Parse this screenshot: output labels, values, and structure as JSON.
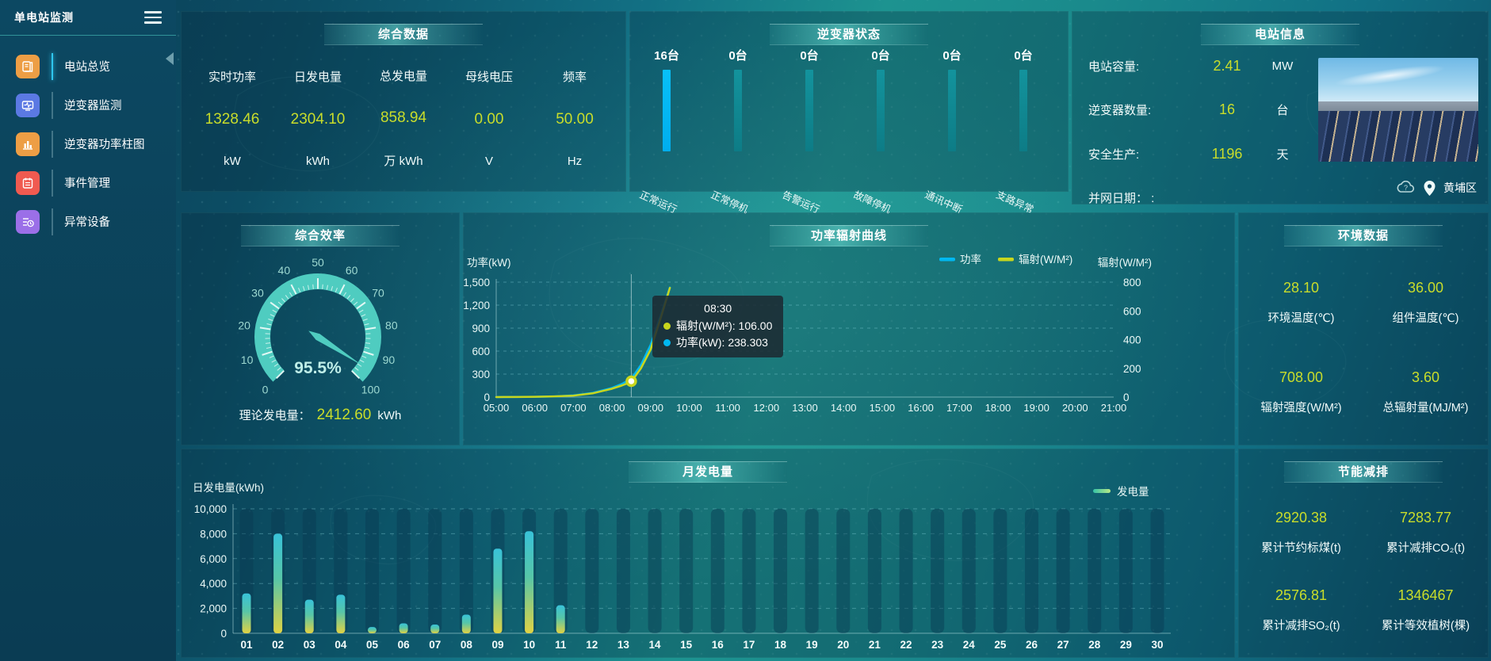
{
  "app": {
    "title": "单电站监测"
  },
  "sidebar": {
    "items": [
      {
        "label": "电站总览",
        "icon": "station-overview-icon",
        "color": "#ED9E45",
        "active": true
      },
      {
        "label": "逆变器监测",
        "icon": "inverter-monitor-icon",
        "color": "#5B79E3",
        "active": false
      },
      {
        "label": "逆变器功率柱图",
        "icon": "inverter-power-bars-icon",
        "color": "#ED9E45",
        "active": false
      },
      {
        "label": "事件管理",
        "icon": "event-management-icon",
        "color": "#F05A50",
        "active": false
      },
      {
        "label": "异常设备",
        "icon": "abnormal-device-icon",
        "color": "#9B6FE8",
        "active": false
      }
    ]
  },
  "panels": {
    "summary": {
      "title": "综合数据",
      "metrics": [
        {
          "label": "实时功率",
          "value": "1328.46",
          "unit": "kW"
        },
        {
          "label": "日发电量",
          "value": "2304.10",
          "unit": "kWh"
        },
        {
          "label": "总发电量",
          "value": "858.94",
          "unit": "万 kWh"
        },
        {
          "label": "母线电压",
          "value": "0.00",
          "unit": "V"
        },
        {
          "label": "频率",
          "value": "50.00",
          "unit": "Hz"
        }
      ]
    },
    "inverter_status": {
      "title": "逆变器状态",
      "bars": [
        {
          "count": "16台",
          "label": "正常运行",
          "highlight": true
        },
        {
          "count": "0台",
          "label": "正常停机",
          "highlight": false
        },
        {
          "count": "0台",
          "label": "告警运行",
          "highlight": false
        },
        {
          "count": "0台",
          "label": "故障停机",
          "highlight": false
        },
        {
          "count": "0台",
          "label": "通讯中断",
          "highlight": false
        },
        {
          "count": "0台",
          "label": "支路异常",
          "highlight": false
        }
      ]
    },
    "station_info": {
      "title": "电站信息",
      "rows": [
        {
          "label": "电站容量:",
          "value": "2.41",
          "unit": "MW"
        },
        {
          "label": "逆变器数量:",
          "value": "16",
          "unit": "台"
        },
        {
          "label": "安全生产:",
          "value": "1196",
          "unit": "天"
        },
        {
          "label": "并网日期： :",
          "value": "",
          "unit": ""
        }
      ],
      "location": "黄埔区"
    },
    "efficiency": {
      "title": "综合效率",
      "theory_label": "理论发电量：",
      "theory_value": "2412.60",
      "theory_unit": "kWh"
    },
    "power_curve": {
      "title": "功率辐射曲线"
    },
    "environment": {
      "title": "环境数据",
      "metrics": [
        {
          "value": "28.10",
          "label": "环境温度(℃)"
        },
        {
          "value": "36.00",
          "label": "组件温度(℃)"
        },
        {
          "value": "708.00",
          "label": "辐射强度(W/M²)"
        },
        {
          "value": "3.60",
          "label": "总辐射量(MJ/M²)"
        }
      ]
    },
    "monthly_energy": {
      "title": "月发电量"
    },
    "energy_saving": {
      "title": "节能减排",
      "metrics": [
        {
          "value": "2920.38",
          "label": "累计节约标煤(t)"
        },
        {
          "value": "7283.77",
          "label": "累计减排CO₂(t)"
        },
        {
          "value": "2576.81",
          "label": "累计减排SO₂(t)"
        },
        {
          "value": "1346467",
          "label": "累计等效植树(棵)"
        }
      ]
    }
  },
  "colors": {
    "accent_value": "#c9dd2a",
    "power_line": "#00b8f1",
    "radiation_line": "#c8d61d",
    "gauge": "#4fccc0",
    "bar_teal": "#12919b",
    "bar_highlight": "#00b6f5"
  },
  "chart_data": [
    {
      "id": "inverter_status",
      "type": "bar",
      "title": "逆变器状态",
      "categories": [
        "正常运行",
        "正常停机",
        "告警运行",
        "故障停机",
        "通讯中断",
        "支路异常"
      ],
      "values": [
        16,
        0,
        0,
        0,
        0,
        0
      ],
      "unit": "台",
      "note": "all bars drawn equal length; counts shown as labels"
    },
    {
      "id": "efficiency_gauge",
      "type": "gauge",
      "title": "综合效率",
      "value": 95.5,
      "display": "95.5%",
      "min": 0,
      "max": 100,
      "tick_labels": [
        "0",
        "10",
        "20",
        "30",
        "40",
        "50",
        "60",
        "70",
        "80",
        "90",
        "100"
      ]
    },
    {
      "id": "power_radiation",
      "type": "line",
      "title": "功率辐射曲线",
      "xlabel": "",
      "x_ticks": [
        "05:00",
        "06:00",
        "07:00",
        "08:00",
        "09:00",
        "10:00",
        "11:00",
        "12:00",
        "13:00",
        "14:00",
        "15:00",
        "16:00",
        "17:00",
        "18:00",
        "19:00",
        "20:00",
        "21:00"
      ],
      "x_range": [
        5,
        21
      ],
      "left_axis": {
        "label": "功率(kW)",
        "min": 0,
        "max": 1500,
        "ticks": [
          "0",
          "300",
          "600",
          "900",
          "1,200",
          "1,500"
        ]
      },
      "right_axis": {
        "label": "辐射(W/M²)",
        "min": 0,
        "max": 800,
        "ticks": [
          "0",
          "200",
          "400",
          "600",
          "800"
        ]
      },
      "legend": [
        {
          "name": "功率",
          "color": "#00b8f1"
        },
        {
          "name": "辐射(W/M²)",
          "color": "#c8d61d"
        }
      ],
      "series": [
        {
          "name": "功率",
          "axis": "left",
          "color": "#00b8f1",
          "points": [
            [
              5,
              0
            ],
            [
              5.5,
              1
            ],
            [
              6,
              3
            ],
            [
              6.5,
              8
            ],
            [
              7,
              22
            ],
            [
              7.5,
              55
            ],
            [
              8,
              120
            ],
            [
              8.25,
              170
            ],
            [
              8.5,
              238.3
            ],
            [
              8.75,
              420
            ],
            [
              9,
              680
            ],
            [
              9.25,
              1050
            ],
            [
              9.5,
              1430
            ]
          ]
        },
        {
          "name": "辐射(W/M²)",
          "axis": "right",
          "color": "#c8d61d",
          "points": [
            [
              5,
              0
            ],
            [
              5.5,
              1
            ],
            [
              6,
              2
            ],
            [
              6.5,
              5
            ],
            [
              7,
              10
            ],
            [
              7.5,
              26
            ],
            [
              8,
              58
            ],
            [
              8.25,
              80
            ],
            [
              8.5,
              106
            ],
            [
              8.75,
              200
            ],
            [
              9,
              330
            ],
            [
              9.25,
              540
            ],
            [
              9.5,
              760
            ]
          ]
        }
      ],
      "crosshair_x": 8.5,
      "highlight_point": {
        "x": 8.5,
        "series": "功率",
        "value": 238.303
      },
      "tooltip": {
        "time": "08:30",
        "items": [
          {
            "name": "辐射(W/M²)",
            "value": "106.00",
            "color": "#c8d61d"
          },
          {
            "name": "功率(kW)",
            "value": "238.303",
            "color": "#00b8f1"
          }
        ]
      }
    },
    {
      "id": "monthly_energy",
      "type": "bar",
      "title": "月发电量",
      "ylabel": "日发电量(kWh)",
      "ylim": [
        0,
        10000
      ],
      "y_ticks": [
        "0",
        "2,000",
        "4,000",
        "6,000",
        "8,000",
        "10,000"
      ],
      "legend": [
        {
          "name": "发电量",
          "color_from": "#35c3a7",
          "color_to": "#b8e986"
        }
      ],
      "categories": [
        "01",
        "02",
        "03",
        "04",
        "05",
        "06",
        "07",
        "08",
        "09",
        "10",
        "11",
        "12",
        "13",
        "14",
        "15",
        "16",
        "17",
        "18",
        "19",
        "20",
        "21",
        "22",
        "23",
        "24",
        "25",
        "26",
        "27",
        "28",
        "29",
        "30"
      ],
      "values": [
        3200,
        8000,
        2700,
        3100,
        500,
        800,
        700,
        1500,
        6800,
        8200,
        2250,
        0,
        0,
        0,
        0,
        0,
        0,
        0,
        0,
        0,
        0,
        0,
        0,
        0,
        0,
        0,
        0,
        0,
        0,
        0
      ]
    }
  ]
}
